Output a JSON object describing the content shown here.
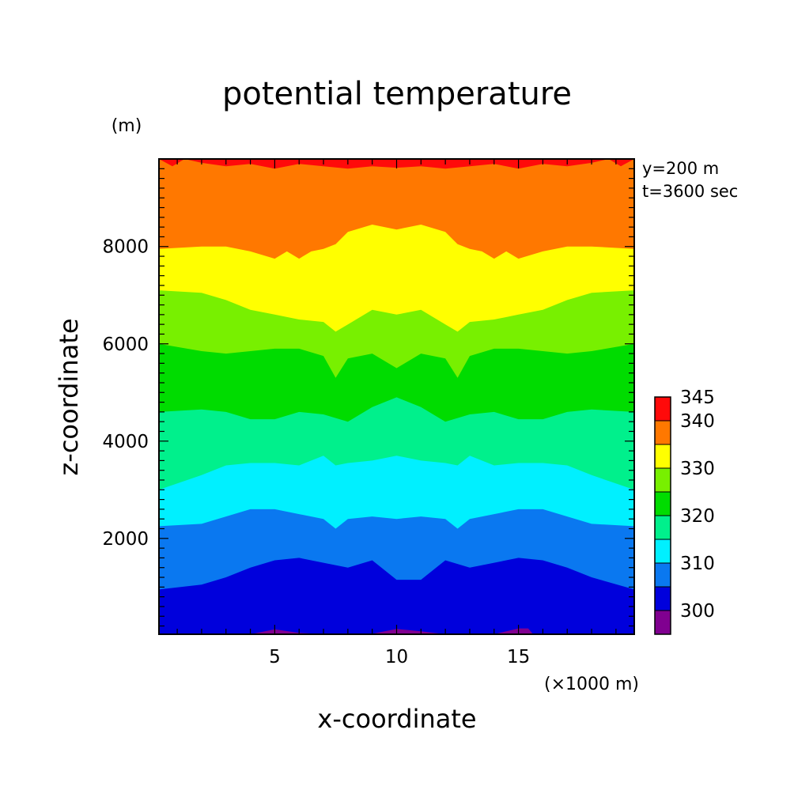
{
  "chart_data": {
    "type": "heatmap",
    "title": "potential temperature",
    "xlabel": "x-coordinate",
    "ylabel": "z-coordinate",
    "x_unit": "(×1000 m)",
    "y_unit": "(m)",
    "annotations": [
      "y=200 m",
      "t=3600 sec"
    ],
    "xlim": [
      0.25,
      19.75
    ],
    "ylim": [
      30,
      9800
    ],
    "x_ticks": [
      "5",
      "10",
      "15"
    ],
    "x_tick_values": [
      5,
      10,
      15
    ],
    "y_ticks": [
      "2000",
      "4000",
      "6000",
      "8000"
    ],
    "y_tick_values": [
      2000,
      4000,
      6000,
      8000
    ],
    "colorbar": {
      "levels": [
        295,
        300,
        305,
        310,
        315,
        320,
        325,
        330,
        335,
        340,
        345
      ],
      "labels": [
        "300",
        "310",
        "320",
        "330",
        "340",
        "345"
      ],
      "label_values": [
        300,
        310,
        320,
        330,
        340,
        345
      ],
      "colors": [
        "#800090",
        "#0000dc",
        "#0a78f0",
        "#00f0ff",
        "#00f08c",
        "#00dc00",
        "#78f000",
        "#ffff00",
        "#ff7800",
        "#ff0a0a"
      ]
    },
    "boundaries": [
      {
        "value": 300,
        "x": [
          0.25,
          4,
          5,
          6,
          7,
          8,
          9,
          10,
          11,
          12,
          13,
          14,
          15,
          15.4,
          15.6,
          19.75
        ],
        "z": [
          0,
          0,
          130,
          60,
          20,
          10,
          40,
          140,
          90,
          20,
          10,
          30,
          150,
          150,
          0,
          0
        ]
      },
      {
        "value": 305,
        "x": [
          0.25,
          2,
          3,
          4,
          5,
          6,
          7,
          8,
          9,
          10,
          11,
          12,
          13,
          14,
          15,
          16,
          17,
          18,
          19.75
        ],
        "z": [
          950,
          1050,
          1200,
          1400,
          1550,
          1600,
          1500,
          1400,
          1550,
          1150,
          1150,
          1550,
          1400,
          1500,
          1600,
          1550,
          1400,
          1200,
          950
        ]
      },
      {
        "value": 310,
        "x": [
          0.25,
          2,
          3,
          4,
          5,
          6,
          7,
          7.5,
          8,
          9,
          10,
          11,
          12,
          12.5,
          13,
          14,
          15,
          16,
          17,
          18,
          19.75
        ],
        "z": [
          2250,
          2300,
          2450,
          2600,
          2600,
          2500,
          2400,
          2200,
          2400,
          2450,
          2400,
          2450,
          2400,
          2200,
          2400,
          2500,
          2600,
          2600,
          2450,
          2300,
          2250
        ]
      },
      {
        "value": 315,
        "x": [
          0.25,
          2,
          3,
          4,
          5,
          6,
          7,
          7.5,
          8,
          9,
          10,
          11,
          12,
          12.5,
          13,
          14,
          15,
          16,
          17,
          18,
          19.75
        ],
        "z": [
          3000,
          3300,
          3500,
          3550,
          3550,
          3500,
          3700,
          3500,
          3550,
          3600,
          3700,
          3600,
          3550,
          3500,
          3700,
          3500,
          3550,
          3550,
          3500,
          3300,
          3000
        ]
      },
      {
        "value": 320,
        "x": [
          0.25,
          2,
          3,
          4,
          5,
          6,
          7,
          8,
          9,
          10,
          11,
          12,
          13,
          14,
          15,
          16,
          17,
          18,
          19.75
        ],
        "z": [
          4600,
          4650,
          4600,
          4450,
          4450,
          4600,
          4550,
          4400,
          4700,
          4900,
          4700,
          4400,
          4550,
          4600,
          4450,
          4450,
          4600,
          4650,
          4600
        ]
      },
      {
        "value": 325,
        "x": [
          0.25,
          2,
          3,
          4,
          5,
          6,
          7,
          7.5,
          8,
          9,
          10,
          11,
          12,
          12.5,
          13,
          14,
          15,
          16,
          17,
          18,
          19.75
        ],
        "z": [
          6000,
          5850,
          5800,
          5850,
          5900,
          5900,
          5750,
          5300,
          5700,
          5800,
          5500,
          5800,
          5700,
          5300,
          5750,
          5900,
          5900,
          5850,
          5800,
          5850,
          6000
        ]
      },
      {
        "value": 330,
        "x": [
          0.25,
          2,
          3,
          4,
          5,
          6,
          7,
          7.5,
          8,
          9,
          10,
          11,
          12,
          12.5,
          13,
          14,
          15,
          16,
          17,
          18,
          19.75
        ],
        "z": [
          7100,
          7050,
          6900,
          6700,
          6600,
          6500,
          6450,
          6250,
          6400,
          6700,
          6600,
          6700,
          6400,
          6250,
          6450,
          6500,
          6600,
          6700,
          6900,
          7050,
          7100
        ]
      },
      {
        "value": 335,
        "x": [
          0.25,
          2,
          3,
          4,
          5,
          5.5,
          6,
          6.5,
          7,
          7.5,
          8,
          9,
          10,
          11,
          12,
          12.5,
          13,
          13.5,
          14,
          14.5,
          15,
          16,
          17,
          18,
          19.75
        ],
        "z": [
          7950,
          8000,
          8000,
          7900,
          7750,
          7900,
          7750,
          7900,
          7950,
          8050,
          8300,
          8450,
          8350,
          8450,
          8300,
          8050,
          7950,
          7900,
          7750,
          7900,
          7750,
          7900,
          8000,
          8000,
          7950
        ]
      },
      {
        "value": 340,
        "x": [
          0.25,
          0.8,
          1.3,
          2,
          3,
          4,
          5,
          6,
          7,
          8,
          9,
          10,
          11,
          12,
          13,
          14,
          15,
          16,
          17,
          18,
          18.7,
          19.2,
          19.75
        ],
        "z": [
          9800,
          9650,
          9800,
          9720,
          9650,
          9700,
          9600,
          9700,
          9650,
          9600,
          9650,
          9620,
          9650,
          9600,
          9650,
          9700,
          9600,
          9700,
          9650,
          9720,
          9800,
          9650,
          9800
        ]
      }
    ]
  }
}
